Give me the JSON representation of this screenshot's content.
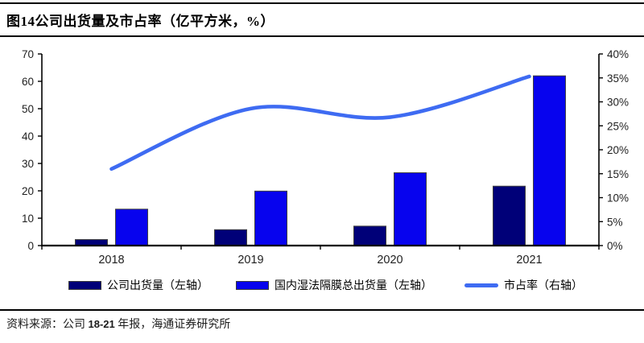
{
  "header": {
    "title": "图14公司出货量及市占率（亿平方米，%）"
  },
  "source_note": {
    "prefix": "资料来源：公司 ",
    "range": "18-21",
    "suffix": " 年报，海通证券研究所"
  },
  "chart_data": {
    "type": "bar",
    "title": "图14公司出货量及市占率（亿平方米，%）",
    "categories": [
      "2018",
      "2019",
      "2020",
      "2021"
    ],
    "series": [
      {
        "name": "公司出货量（左轴）",
        "type": "bar",
        "axis": "left",
        "color": "#000078",
        "border": "#404040",
        "values": [
          2.2,
          5.8,
          7.1,
          21.7
        ]
      },
      {
        "name": "国内湿法隔膜总出货量（左轴）",
        "type": "bar",
        "axis": "left",
        "color": "#0703EE",
        "border": "#404040",
        "values": [
          13.3,
          19.9,
          26.6,
          62.0
        ]
      },
      {
        "name": "市占率（右轴）",
        "type": "line",
        "axis": "right",
        "color": "#3E6BF2",
        "values": [
          16,
          28.6,
          26.8,
          35.3
        ]
      }
    ],
    "left_axis": {
      "min": 0,
      "max": 70,
      "step": 10,
      "tick_labels": [
        "0",
        "10",
        "20",
        "30",
        "40",
        "50",
        "60",
        "70"
      ]
    },
    "right_axis": {
      "min": 0,
      "max": 40,
      "step": 5,
      "tick_labels": [
        "0%",
        "5%",
        "10%",
        "15%",
        "20%",
        "25%",
        "30%",
        "35%",
        "40%"
      ],
      "unit": "%"
    },
    "legend_position": "bottom",
    "grid": false,
    "axis_color": "#000000",
    "tick_label_color": "#1f1f1f"
  }
}
